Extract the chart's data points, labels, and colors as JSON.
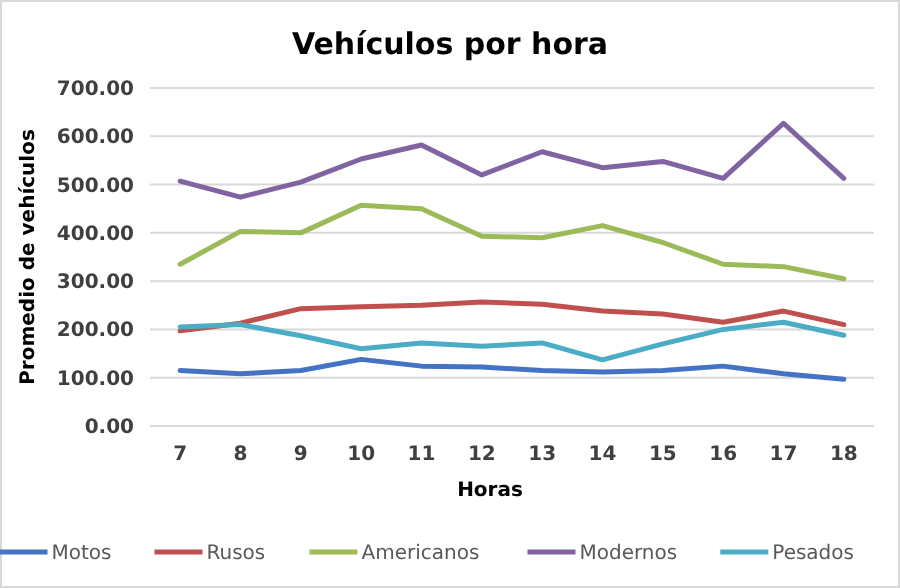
{
  "chart_data": {
    "type": "line",
    "title": "Vehículos por hora",
    "xlabel": "Horas",
    "ylabel": "Promedio de vehículos",
    "categories": [
      "7",
      "8",
      "9",
      "10",
      "11",
      "12",
      "13",
      "14",
      "15",
      "16",
      "17",
      "18"
    ],
    "ylim": [
      0,
      700
    ],
    "yticks": [
      {
        "value": 0,
        "label": "0.00"
      },
      {
        "value": 100,
        "label": "100.00"
      },
      {
        "value": 200,
        "label": "200.00"
      },
      {
        "value": 300,
        "label": "300.00"
      },
      {
        "value": 400,
        "label": "400.00"
      },
      {
        "value": 500,
        "label": "500.00"
      },
      {
        "value": 600,
        "label": "600.00"
      },
      {
        "value": 700,
        "label": "700.00"
      }
    ],
    "grid": "y",
    "legend": "bottom",
    "marker": "none",
    "line_style": "solid",
    "series": [
      {
        "name": "Motos",
        "color": "#4472c4",
        "values": [
          115,
          108,
          115,
          138,
          124,
          122,
          115,
          112,
          115,
          124,
          108,
          97
        ]
      },
      {
        "name": "Rusos",
        "color": "#c0504d",
        "values": [
          197,
          213,
          243,
          247,
          250,
          257,
          252,
          238,
          232,
          215,
          238,
          210
        ]
      },
      {
        "name": "Americanos",
        "color": "#9bbb59",
        "values": [
          335,
          403,
          400,
          457,
          450,
          393,
          390,
          415,
          380,
          335,
          330,
          305
        ]
      },
      {
        "name": "Modernos",
        "color": "#8064a2",
        "values": [
          507,
          474,
          505,
          553,
          582,
          520,
          568,
          535,
          548,
          513,
          627,
          513
        ]
      },
      {
        "name": "Pesados",
        "color": "#4bacc6",
        "values": [
          205,
          210,
          187,
          160,
          172,
          165,
          172,
          137,
          170,
          200,
          215,
          188
        ]
      }
    ]
  }
}
